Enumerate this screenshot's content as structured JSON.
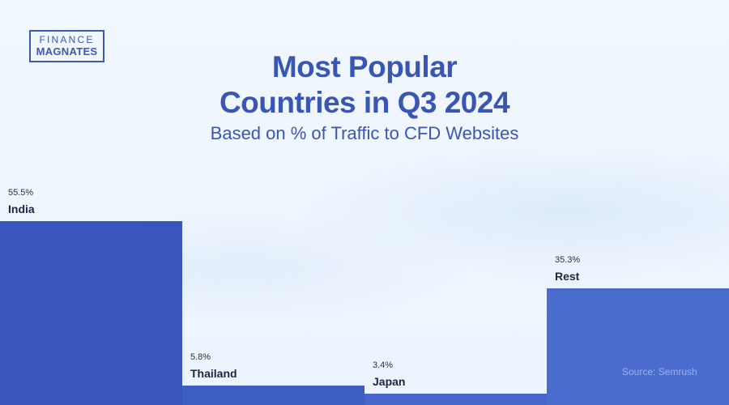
{
  "logo": {
    "line1": "FINANCE",
    "line2": "MAGNATES"
  },
  "header": {
    "title_line1": "Most Popular",
    "title_line2": "Countries in Q3 2024",
    "subtitle": "Based on % of Traffic to CFD Websites"
  },
  "bars": [
    {
      "name": "India",
      "pct": "55.5%",
      "color": "#3a55bb"
    },
    {
      "name": "Thailand",
      "pct": "5.8%",
      "color": "#3f5ec3"
    },
    {
      "name": "Japan",
      "pct": "3.4%",
      "color": "#4766cc"
    },
    {
      "name": "Rest",
      "pct": "35.3%",
      "color": "#4a6ccf"
    }
  ],
  "source": "Source: Semrush",
  "chart_data": {
    "type": "bar",
    "title": "Most Popular Countries in Q3 2024",
    "subtitle": "Based on % of Traffic to CFD Websites",
    "categories": [
      "India",
      "Thailand",
      "Japan",
      "Rest"
    ],
    "values": [
      55.5,
      5.8,
      3.4,
      35.3
    ],
    "unit": "%",
    "xlabel": "",
    "ylabel": "",
    "grid": false,
    "source": "Semrush"
  }
}
